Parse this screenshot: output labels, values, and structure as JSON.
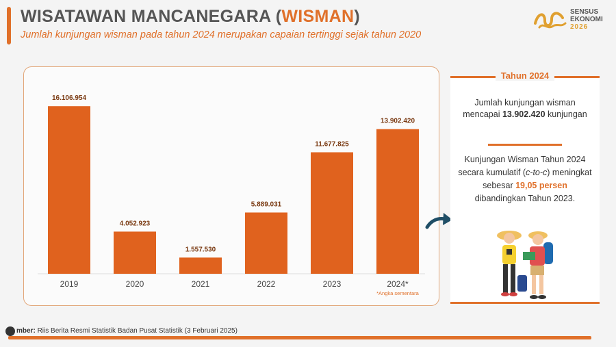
{
  "header": {
    "title_main": "WISATAWAN MANCANEGARA (",
    "title_highlight": "WISMAN",
    "title_end": ")",
    "subtitle": "Jumlah kunjungan wisman pada tahun 2024 merupakan capaian tertinggi sejak tahun 2020"
  },
  "logo": {
    "line1": "SENSUS",
    "line2": "EKONOMI",
    "year": "2026"
  },
  "chart_data": {
    "type": "bar",
    "categories": [
      "2019",
      "2020",
      "2021",
      "2022",
      "2023",
      "2024*"
    ],
    "values": [
      16106954,
      4052923,
      1557530,
      5889031,
      11677825,
      13902420
    ],
    "value_labels": [
      "16.106.954",
      "4.052.923",
      "1.557.530",
      "5.889.031",
      "11.677.825",
      "13.902.420"
    ],
    "annotation": "*Angka sementara",
    "ylim": [
      0,
      17500000
    ],
    "bar_color": "#e0621e",
    "grid": false
  },
  "side": {
    "heading": "Tahun 2024",
    "p1_a": "Jumlah kunjungan wisman mencapai ",
    "p1_b": "13.902.420",
    "p1_c": " kunjungan",
    "p2_a": "Kunjungan Wisman Tahun 2024 secara kumulatif (",
    "p2_b": "c-to-c",
    "p2_c": ") meningkat sebesar ",
    "p2_d": "19,05 persen",
    "p2_e": " dibandingkan Tahun 2023."
  },
  "footer": {
    "label": "mber:",
    "text": " Riis Berita Resmi Statistik Badan Pusat Statistik (3 Februari 2025)"
  },
  "colors": {
    "accent": "#e0702a",
    "bar": "#e0621e",
    "title": "#555555"
  }
}
